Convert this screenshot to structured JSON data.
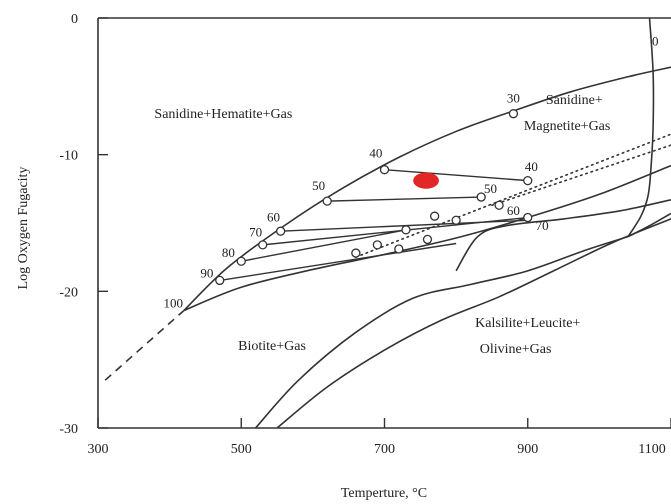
{
  "chart_data": {
    "type": "phase-diagram",
    "title": "",
    "xlabel": "Temperture, °C",
    "ylabel": "Log Oxygen Fugacity",
    "xlim": [
      300,
      1100
    ],
    "ylim": [
      -30,
      0
    ],
    "x_ticks": [
      {
        "value": 300,
        "label": "300"
      },
      {
        "value": 500,
        "label": "500"
      },
      {
        "value": 700,
        "label": "700"
      },
      {
        "value": 900,
        "label": "900"
      },
      {
        "value": 1100,
        "label": "1100"
      }
    ],
    "y_ticks": [
      {
        "value": 0,
        "label": "0"
      },
      {
        "value": -10,
        "label": "-10"
      },
      {
        "value": -20,
        "label": "-20"
      },
      {
        "value": -30,
        "label": "-30"
      }
    ],
    "fields": [
      {
        "label": "Sanidine+Hematite+Gas",
        "x": 475,
        "y": -7.3
      },
      {
        "label": "Sanidine+",
        "x": 965,
        "y": -6.3
      },
      {
        "label": "Magnetite+Gas",
        "x": 955,
        "y": -8.2
      },
      {
        "label": "Biotite+Gas",
        "x": 543,
        "y": -24.3
      },
      {
        "label": "Kalsilite+Leucite+",
        "x": 900,
        "y": -22.6
      },
      {
        "label": "Olivine+Gas",
        "x": 883,
        "y": -24.5
      }
    ],
    "boundary_curves": [
      {
        "x": [
          420,
          480,
          560,
          640,
          720,
          800,
          880,
          960,
          1040,
          1100
        ],
        "y": [
          -21.4,
          -18.3,
          -15.2,
          -12.5,
          -10.2,
          -8.3,
          -6.8,
          -5.4,
          -4.3,
          -3.6
        ]
      },
      {
        "x": [
          420,
          500,
          600,
          700,
          800,
          900,
          1000,
          1100
        ],
        "y": [
          -21.4,
          -19.7,
          -18.4,
          -17.3,
          -16.1,
          -14.6,
          -12.9,
          -10.8
        ]
      },
      {
        "x": [
          1070,
          1075,
          1075,
          1072,
          1068,
          1058,
          1040
        ],
        "y": [
          0,
          -4,
          -8,
          -11,
          -13,
          -14.5,
          -16
        ]
      },
      {
        "x": [
          520,
          580,
          660,
          740,
          820,
          900,
          980,
          1040
        ],
        "y": [
          -30,
          -26.5,
          -23,
          -20.5,
          -19.5,
          -18.5,
          -17,
          -16
        ]
      },
      {
        "x": [
          1040,
          1070,
          1100
        ],
        "y": [
          -16,
          -15.2,
          -14.3
        ]
      },
      {
        "x": [
          550,
          620,
          700,
          780,
          860,
          940,
          1020,
          1100
        ],
        "y": [
          -30,
          -27,
          -24.3,
          -22.1,
          -20.4,
          -18.4,
          -16.4,
          -14.7
        ]
      },
      {
        "x": [
          800,
          830,
          870,
          950,
          1030,
          1100
        ],
        "y": [
          -18.5,
          -16,
          -15.2,
          -14.7,
          -14.1,
          -13.3
        ]
      }
    ],
    "dashed_extension": {
      "x": [
        310,
        420
      ],
      "y": [
        -26.5,
        -21.4
      ]
    },
    "dotted_lines": [
      {
        "x": [
          660,
          1100
        ],
        "y": [
          -17.5,
          -8.5
        ]
      },
      {
        "x": [
          850,
          1100
        ],
        "y": [
          -13.7,
          -9.3
        ]
      }
    ],
    "tie_lines": [
      {
        "from_label": "40",
        "to_label": "40",
        "x": [
          700,
          900
        ],
        "y": [
          -11.1,
          -11.9
        ]
      },
      {
        "from_label": "50",
        "to_label": "50",
        "x": [
          620,
          835
        ],
        "y": [
          -13.4,
          -13.1
        ]
      },
      {
        "from_label": "60",
        "to_label": "60",
        "x": [
          555,
          900
        ],
        "y": [
          -15.6,
          -14.8
        ]
      },
      {
        "from_label": "70",
        "to_label": "70",
        "x": [
          530,
          900
        ],
        "y": [
          -16.6,
          -14.6
        ]
      },
      {
        "from_label": "80",
        "to_label": "",
        "x": [
          500,
          730
        ],
        "y": [
          -17.8,
          -15.5
        ]
      },
      {
        "from_label": "90",
        "to_label": "",
        "x": [
          470,
          800
        ],
        "y": [
          -19.2,
          -16.5
        ]
      }
    ],
    "circle_points": [
      {
        "x": 880,
        "y": -7.0
      },
      {
        "x": 700,
        "y": -11.1
      },
      {
        "x": 620,
        "y": -13.4
      },
      {
        "x": 555,
        "y": -15.6
      },
      {
        "x": 530,
        "y": -16.6
      },
      {
        "x": 500,
        "y": -17.8
      },
      {
        "x": 470,
        "y": -19.2
      },
      {
        "x": 900,
        "y": -11.9
      },
      {
        "x": 835,
        "y": -13.1
      },
      {
        "x": 860,
        "y": -13.7
      },
      {
        "x": 900,
        "y": -14.6
      },
      {
        "x": 770,
        "y": -14.5
      },
      {
        "x": 730,
        "y": -15.5
      },
      {
        "x": 800,
        "y": -14.8
      },
      {
        "x": 760,
        "y": -16.2
      },
      {
        "x": 720,
        "y": -16.9
      },
      {
        "x": 690,
        "y": -16.6
      },
      {
        "x": 660,
        "y": -17.2
      }
    ],
    "curve_labels": [
      {
        "text": "0",
        "x": 1078,
        "y": -2.0
      },
      {
        "text": "30",
        "x": 880,
        "y": -6.2
      },
      {
        "text": "40",
        "x": 688,
        "y": -10.2
      },
      {
        "text": "50",
        "x": 608,
        "y": -12.6
      },
      {
        "text": "60",
        "x": 545,
        "y": -14.9
      },
      {
        "text": "70",
        "x": 520,
        "y": -16.0
      },
      {
        "text": "80",
        "x": 482,
        "y": -17.5
      },
      {
        "text": "90",
        "x": 452,
        "y": -19.0
      },
      {
        "text": "100",
        "x": 405,
        "y": -21.2
      },
      {
        "text": "40",
        "x": 905,
        "y": -11.2
      },
      {
        "text": "50",
        "x": 848,
        "y": -12.8
      },
      {
        "text": "60",
        "x": 880,
        "y": -14.4
      },
      {
        "text": "70",
        "x": 920,
        "y": -15.5
      }
    ],
    "highlight_ellipse": {
      "x": 758,
      "y": -11.9,
      "rx_data": 18,
      "ry_data": 0.45,
      "color": "#e32626"
    },
    "colors": {
      "line": "#333333",
      "highlight": "#e32626",
      "background": "#ffffff"
    }
  }
}
